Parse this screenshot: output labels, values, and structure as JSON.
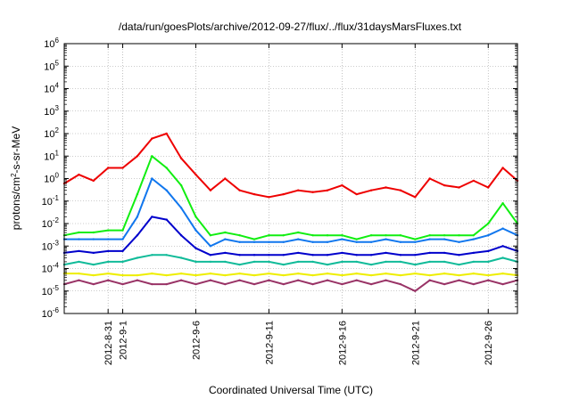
{
  "chart_data": {
    "type": "line",
    "title": "/data/run/goesPlots/archive/2012-09-27/flux/../flux/31daysMarsFluxes.txt",
    "xlabel": "Coordinated Universal Time (UTC)",
    "ylabel": "protons/cm²-s-sr-MeV",
    "ylabel_parts": {
      "pre": "protons/cm",
      "sup": "2",
      "post": "-s-sr-MeV"
    },
    "yscale": "log",
    "ylim": [
      1e-06,
      1000000.0
    ],
    "xlim": [
      "2012-08-28",
      "2012-09-28"
    ],
    "grid": true,
    "y_ticks": [
      {
        "base": "10",
        "exp": "-6",
        "value": 1e-06
      },
      {
        "base": "10",
        "exp": "-5",
        "value": 1e-05
      },
      {
        "base": "10",
        "exp": "-4",
        "value": 0.0001
      },
      {
        "base": "10",
        "exp": "-3",
        "value": 0.001
      },
      {
        "base": "10",
        "exp": "-2",
        "value": 0.01
      },
      {
        "base": "10",
        "exp": "-1",
        "value": 0.1
      },
      {
        "base": "10",
        "exp": "0",
        "value": 1
      },
      {
        "base": "10",
        "exp": "1",
        "value": 10
      },
      {
        "base": "10",
        "exp": "2",
        "value": 100
      },
      {
        "base": "10",
        "exp": "3",
        "value": 1000
      },
      {
        "base": "10",
        "exp": "4",
        "value": 10000
      },
      {
        "base": "10",
        "exp": "5",
        "value": 100000
      },
      {
        "base": "10",
        "exp": "6",
        "value": 1000000
      }
    ],
    "x_ticks": [
      {
        "label": "2012-8-31",
        "x": "2012-08-31"
      },
      {
        "label": "2012-9-1",
        "x": "2012-09-01"
      },
      {
        "label": "2012-9-6",
        "x": "2012-09-06"
      },
      {
        "label": "2012-9-11",
        "x": "2012-09-11"
      },
      {
        "label": "2012-9-16",
        "x": "2012-09-16"
      },
      {
        "label": "2012-9-21",
        "x": "2012-09-21"
      },
      {
        "label": "2012-9-26",
        "x": "2012-09-26"
      }
    ],
    "series": [
      {
        "color": "#ee0000",
        "x": [
          "2012-08-28",
          "2012-08-29",
          "2012-08-30",
          "2012-08-31",
          "2012-09-01",
          "2012-09-02",
          "2012-09-03",
          "2012-09-04",
          "2012-09-05",
          "2012-09-06",
          "2012-09-07",
          "2012-09-08",
          "2012-09-09",
          "2012-09-10",
          "2012-09-11",
          "2012-09-12",
          "2012-09-13",
          "2012-09-14",
          "2012-09-15",
          "2012-09-16",
          "2012-09-17",
          "2012-09-18",
          "2012-09-19",
          "2012-09-20",
          "2012-09-21",
          "2012-09-22",
          "2012-09-23",
          "2012-09-24",
          "2012-09-25",
          "2012-09-26",
          "2012-09-27",
          "2012-09-28"
        ],
        "values": [
          0.6,
          1.5,
          0.8,
          3,
          3,
          10,
          60,
          100,
          8,
          1.5,
          0.3,
          1,
          0.3,
          0.2,
          0.15,
          0.2,
          0.3,
          0.25,
          0.3,
          0.5,
          0.2,
          0.3,
          0.4,
          0.3,
          0.15,
          1,
          0.5,
          0.4,
          0.8,
          0.4,
          3,
          0.8
        ]
      },
      {
        "color": "#11ee11",
        "x": [
          "2012-08-28",
          "2012-08-29",
          "2012-08-30",
          "2012-08-31",
          "2012-09-01",
          "2012-09-02",
          "2012-09-03",
          "2012-09-04",
          "2012-09-05",
          "2012-09-06",
          "2012-09-07",
          "2012-09-08",
          "2012-09-09",
          "2012-09-10",
          "2012-09-11",
          "2012-09-12",
          "2012-09-13",
          "2012-09-14",
          "2012-09-15",
          "2012-09-16",
          "2012-09-17",
          "2012-09-18",
          "2012-09-19",
          "2012-09-20",
          "2012-09-21",
          "2012-09-22",
          "2012-09-23",
          "2012-09-24",
          "2012-09-25",
          "2012-09-26",
          "2012-09-27",
          "2012-09-28"
        ],
        "values": [
          0.003,
          0.004,
          0.004,
          0.005,
          0.005,
          0.2,
          10,
          3,
          0.5,
          0.02,
          0.003,
          0.004,
          0.003,
          0.002,
          0.003,
          0.003,
          0.004,
          0.003,
          0.003,
          0.003,
          0.002,
          0.003,
          0.003,
          0.003,
          0.002,
          0.003,
          0.003,
          0.003,
          0.003,
          0.01,
          0.08,
          0.01
        ]
      },
      {
        "color": "#1177ee",
        "x": [
          "2012-08-28",
          "2012-08-29",
          "2012-08-30",
          "2012-08-31",
          "2012-09-01",
          "2012-09-02",
          "2012-09-03",
          "2012-09-04",
          "2012-09-05",
          "2012-09-06",
          "2012-09-07",
          "2012-09-08",
          "2012-09-09",
          "2012-09-10",
          "2012-09-11",
          "2012-09-12",
          "2012-09-13",
          "2012-09-14",
          "2012-09-15",
          "2012-09-16",
          "2012-09-17",
          "2012-09-18",
          "2012-09-19",
          "2012-09-20",
          "2012-09-21",
          "2012-09-22",
          "2012-09-23",
          "2012-09-24",
          "2012-09-25",
          "2012-09-26",
          "2012-09-27",
          "2012-09-28"
        ],
        "values": [
          0.002,
          0.002,
          0.002,
          0.002,
          0.002,
          0.02,
          1,
          0.3,
          0.05,
          0.005,
          0.001,
          0.002,
          0.0015,
          0.0015,
          0.0015,
          0.0015,
          0.002,
          0.0015,
          0.0015,
          0.002,
          0.0015,
          0.0015,
          0.002,
          0.0015,
          0.0015,
          0.002,
          0.002,
          0.0015,
          0.002,
          0.003,
          0.006,
          0.003
        ]
      },
      {
        "color": "#0000cc",
        "x": [
          "2012-08-28",
          "2012-08-29",
          "2012-08-30",
          "2012-08-31",
          "2012-09-01",
          "2012-09-02",
          "2012-09-03",
          "2012-09-04",
          "2012-09-05",
          "2012-09-06",
          "2012-09-07",
          "2012-09-08",
          "2012-09-09",
          "2012-09-10",
          "2012-09-11",
          "2012-09-12",
          "2012-09-13",
          "2012-09-14",
          "2012-09-15",
          "2012-09-16",
          "2012-09-17",
          "2012-09-18",
          "2012-09-19",
          "2012-09-20",
          "2012-09-21",
          "2012-09-22",
          "2012-09-23",
          "2012-09-24",
          "2012-09-25",
          "2012-09-26",
          "2012-09-27",
          "2012-09-28"
        ],
        "values": [
          0.0005,
          0.0006,
          0.0005,
          0.0006,
          0.0006,
          0.003,
          0.02,
          0.015,
          0.003,
          0.0008,
          0.0004,
          0.0005,
          0.0004,
          0.0004,
          0.0004,
          0.0004,
          0.0005,
          0.0004,
          0.0004,
          0.0005,
          0.0004,
          0.0004,
          0.0005,
          0.0004,
          0.0004,
          0.0005,
          0.0005,
          0.0004,
          0.0005,
          0.0006,
          0.001,
          0.0006
        ]
      },
      {
        "color": "#11bb99",
        "x": [
          "2012-08-28",
          "2012-08-29",
          "2012-08-30",
          "2012-08-31",
          "2012-09-01",
          "2012-09-02",
          "2012-09-03",
          "2012-09-04",
          "2012-09-05",
          "2012-09-06",
          "2012-09-07",
          "2012-09-08",
          "2012-09-09",
          "2012-09-10",
          "2012-09-11",
          "2012-09-12",
          "2012-09-13",
          "2012-09-14",
          "2012-09-15",
          "2012-09-16",
          "2012-09-17",
          "2012-09-18",
          "2012-09-19",
          "2012-09-20",
          "2012-09-21",
          "2012-09-22",
          "2012-09-23",
          "2012-09-24",
          "2012-09-25",
          "2012-09-26",
          "2012-09-27",
          "2012-09-28"
        ],
        "values": [
          0.00015,
          0.0002,
          0.00015,
          0.0002,
          0.0002,
          0.0003,
          0.0004,
          0.0004,
          0.0003,
          0.0002,
          0.0002,
          0.0002,
          0.00015,
          0.0002,
          0.0002,
          0.00015,
          0.0002,
          0.0002,
          0.00015,
          0.0002,
          0.0002,
          0.00015,
          0.0002,
          0.0002,
          0.00015,
          0.0002,
          0.0002,
          0.00015,
          0.0002,
          0.0002,
          0.0003,
          0.0002
        ]
      },
      {
        "color": "#eeee00",
        "x": [
          "2012-08-28",
          "2012-08-29",
          "2012-08-30",
          "2012-08-31",
          "2012-09-01",
          "2012-09-02",
          "2012-09-03",
          "2012-09-04",
          "2012-09-05",
          "2012-09-06",
          "2012-09-07",
          "2012-09-08",
          "2012-09-09",
          "2012-09-10",
          "2012-09-11",
          "2012-09-12",
          "2012-09-13",
          "2012-09-14",
          "2012-09-15",
          "2012-09-16",
          "2012-09-17",
          "2012-09-18",
          "2012-09-19",
          "2012-09-20",
          "2012-09-21",
          "2012-09-22",
          "2012-09-23",
          "2012-09-24",
          "2012-09-25",
          "2012-09-26",
          "2012-09-27",
          "2012-09-28"
        ],
        "values": [
          6e-05,
          6e-05,
          5e-05,
          6e-05,
          5e-05,
          5e-05,
          6e-05,
          5e-05,
          6e-05,
          5e-05,
          6e-05,
          5e-05,
          6e-05,
          5e-05,
          6e-05,
          5e-05,
          6e-05,
          5e-05,
          6e-05,
          5e-05,
          6e-05,
          5e-05,
          6e-05,
          5e-05,
          6e-05,
          5e-05,
          6e-05,
          5e-05,
          6e-05,
          5e-05,
          6e-05,
          5e-05
        ]
      },
      {
        "color": "#993366",
        "x": [
          "2012-08-28",
          "2012-08-29",
          "2012-08-30",
          "2012-08-31",
          "2012-09-01",
          "2012-09-02",
          "2012-09-03",
          "2012-09-04",
          "2012-09-05",
          "2012-09-06",
          "2012-09-07",
          "2012-09-08",
          "2012-09-09",
          "2012-09-10",
          "2012-09-11",
          "2012-09-12",
          "2012-09-13",
          "2012-09-14",
          "2012-09-15",
          "2012-09-16",
          "2012-09-17",
          "2012-09-18",
          "2012-09-19",
          "2012-09-20",
          "2012-09-21",
          "2012-09-22",
          "2012-09-23",
          "2012-09-24",
          "2012-09-25",
          "2012-09-26",
          "2012-09-27",
          "2012-09-28"
        ],
        "values": [
          2e-05,
          3e-05,
          2e-05,
          3e-05,
          2e-05,
          3e-05,
          2e-05,
          2e-05,
          3e-05,
          2e-05,
          3e-05,
          2e-05,
          3e-05,
          2e-05,
          3e-05,
          2e-05,
          3e-05,
          2e-05,
          3e-05,
          2e-05,
          3e-05,
          2e-05,
          3e-05,
          2e-05,
          1e-05,
          3e-05,
          2e-05,
          3e-05,
          2e-05,
          3e-05,
          2e-05,
          3e-05
        ]
      }
    ]
  }
}
